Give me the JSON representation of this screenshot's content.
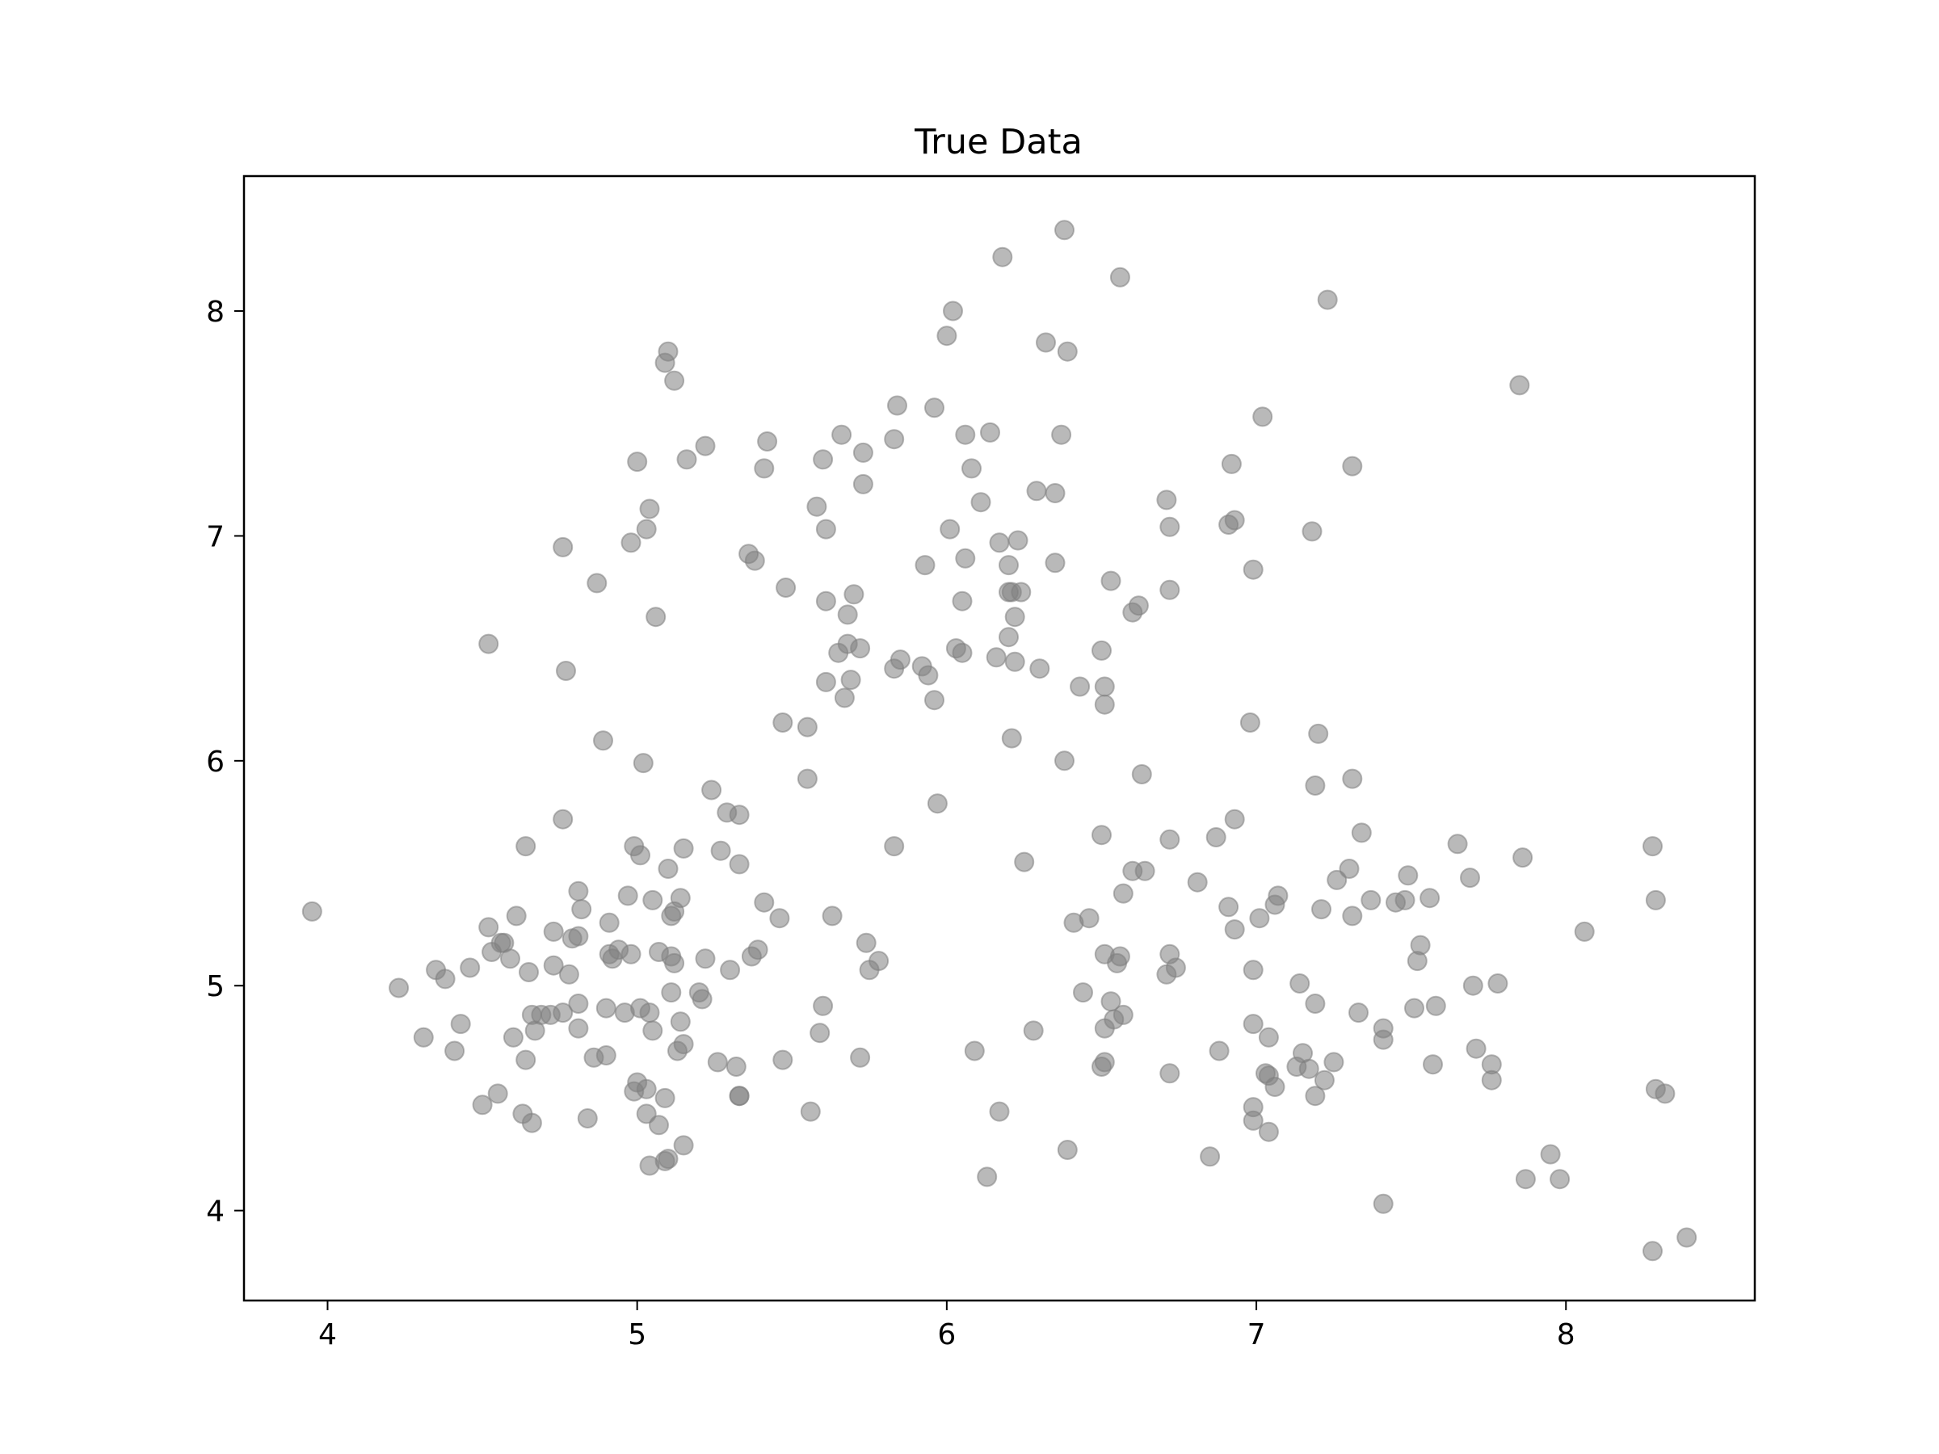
{
  "chart_data": {
    "type": "scatter",
    "title": "True Data",
    "xlabel": "",
    "ylabel": "",
    "xlim": [
      3.73,
      8.61
    ],
    "ylim": [
      3.6,
      8.6
    ],
    "xticks": [
      4,
      5,
      6,
      7,
      8
    ],
    "yticks": [
      4,
      5,
      6,
      7,
      8
    ],
    "grid": false,
    "legend": "none",
    "marker_color": "#808080",
    "marker_opacity": 0.55,
    "points": [
      [
        3.95,
        5.33
      ],
      [
        4.23,
        4.99
      ],
      [
        4.31,
        4.77
      ],
      [
        4.35,
        5.07
      ],
      [
        4.38,
        5.03
      ],
      [
        4.41,
        4.71
      ],
      [
        4.43,
        4.83
      ],
      [
        4.46,
        5.08
      ],
      [
        4.5,
        4.47
      ],
      [
        4.52,
        5.26
      ],
      [
        4.53,
        5.15
      ],
      [
        4.55,
        4.52
      ],
      [
        4.56,
        5.19
      ],
      [
        4.57,
        5.19
      ],
      [
        4.59,
        5.12
      ],
      [
        4.6,
        4.77
      ],
      [
        4.61,
        5.31
      ],
      [
        4.63,
        4.43
      ],
      [
        4.64,
        4.67
      ],
      [
        4.65,
        5.06
      ],
      [
        4.66,
        4.39
      ],
      [
        4.66,
        4.87
      ],
      [
        4.67,
        4.8
      ],
      [
        4.69,
        4.87
      ],
      [
        4.72,
        4.87
      ],
      [
        4.73,
        5.24
      ],
      [
        4.73,
        5.09
      ],
      [
        4.76,
        4.88
      ],
      [
        4.78,
        5.05
      ],
      [
        4.79,
        5.21
      ],
      [
        4.81,
        5.22
      ],
      [
        4.81,
        4.92
      ],
      [
        4.81,
        4.81
      ],
      [
        4.82,
        5.34
      ],
      [
        4.81,
        5.42
      ],
      [
        4.84,
        4.41
      ],
      [
        4.86,
        4.68
      ],
      [
        4.9,
        4.69
      ],
      [
        4.9,
        4.9
      ],
      [
        4.91,
        5.28
      ],
      [
        4.91,
        5.14
      ],
      [
        4.92,
        5.12
      ],
      [
        4.94,
        5.16
      ],
      [
        4.96,
        4.88
      ],
      [
        4.97,
        5.4
      ],
      [
        4.98,
        5.14
      ],
      [
        4.99,
        4.53
      ],
      [
        4.99,
        5.62
      ],
      [
        5.0,
        4.57
      ],
      [
        5.01,
        4.9
      ],
      [
        5.01,
        5.58
      ],
      [
        5.03,
        4.54
      ],
      [
        5.03,
        4.43
      ],
      [
        5.04,
        4.2
      ],
      [
        5.04,
        4.88
      ],
      [
        5.05,
        4.8
      ],
      [
        5.05,
        5.38
      ],
      [
        5.07,
        4.38
      ],
      [
        5.07,
        5.15
      ],
      [
        5.09,
        4.22
      ],
      [
        5.09,
        4.5
      ],
      [
        5.1,
        4.23
      ],
      [
        5.1,
        5.52
      ],
      [
        5.11,
        5.13
      ],
      [
        5.11,
        4.97
      ],
      [
        5.11,
        5.31
      ],
      [
        5.12,
        5.33
      ],
      [
        5.12,
        5.1
      ],
      [
        5.13,
        4.71
      ],
      [
        5.14,
        4.84
      ],
      [
        5.14,
        5.39
      ],
      [
        5.15,
        4.29
      ],
      [
        5.15,
        4.74
      ],
      [
        5.15,
        5.61
      ],
      [
        5.2,
        4.97
      ],
      [
        5.21,
        4.94
      ],
      [
        5.22,
        5.12
      ],
      [
        5.24,
        5.87
      ],
      [
        5.26,
        4.66
      ],
      [
        5.27,
        5.6
      ],
      [
        5.29,
        5.77
      ],
      [
        5.3,
        5.07
      ],
      [
        5.32,
        4.64
      ],
      [
        5.33,
        4.51
      ],
      [
        5.33,
        4.51
      ],
      [
        5.33,
        5.54
      ],
      [
        5.33,
        5.76
      ],
      [
        5.37,
        5.13
      ],
      [
        5.39,
        5.16
      ],
      [
        5.41,
        5.37
      ],
      [
        5.46,
        5.3
      ],
      [
        5.47,
        4.67
      ],
      [
        4.76,
        5.74
      ],
      [
        4.64,
        5.62
      ],
      [
        4.89,
        6.09
      ],
      [
        5.02,
        5.99
      ],
      [
        4.52,
        6.52
      ],
      [
        4.77,
        6.4
      ],
      [
        4.87,
        6.79
      ],
      [
        4.76,
        6.95
      ],
      [
        4.98,
        6.97
      ],
      [
        5.03,
        7.03
      ],
      [
        5.04,
        7.12
      ],
      [
        5.06,
        6.64
      ],
      [
        5.0,
        7.33
      ],
      [
        5.16,
        7.34
      ],
      [
        5.22,
        7.4
      ],
      [
        5.09,
        7.77
      ],
      [
        5.1,
        7.82
      ],
      [
        5.12,
        7.69
      ],
      [
        5.36,
        6.92
      ],
      [
        5.38,
        6.89
      ],
      [
        5.41,
        7.3
      ],
      [
        5.42,
        7.42
      ],
      [
        5.48,
        6.77
      ],
      [
        5.47,
        6.17
      ],
      [
        5.55,
        6.15
      ],
      [
        5.55,
        5.92
      ],
      [
        5.58,
        7.13
      ],
      [
        5.6,
        7.34
      ],
      [
        5.61,
        7.03
      ],
      [
        5.61,
        6.71
      ],
      [
        5.61,
        6.35
      ],
      [
        5.65,
        6.48
      ],
      [
        5.66,
        7.45
      ],
      [
        5.67,
        6.28
      ],
      [
        5.68,
        6.52
      ],
      [
        5.68,
        6.65
      ],
      [
        5.69,
        6.36
      ],
      [
        5.7,
        6.74
      ],
      [
        5.72,
        6.5
      ],
      [
        5.73,
        7.23
      ],
      [
        5.73,
        7.37
      ],
      [
        5.83,
        7.43
      ],
      [
        5.83,
        6.41
      ],
      [
        5.84,
        7.58
      ],
      [
        5.85,
        6.45
      ],
      [
        5.92,
        6.42
      ],
      [
        5.94,
        6.38
      ],
      [
        5.93,
        6.87
      ],
      [
        5.96,
        6.27
      ],
      [
        5.96,
        7.57
      ],
      [
        6.0,
        7.89
      ],
      [
        6.01,
        7.03
      ],
      [
        6.02,
        8.0
      ],
      [
        6.03,
        6.5
      ],
      [
        6.05,
        6.71
      ],
      [
        6.05,
        6.48
      ],
      [
        6.06,
        6.9
      ],
      [
        6.06,
        7.45
      ],
      [
        6.08,
        7.3
      ],
      [
        6.11,
        7.15
      ],
      [
        6.14,
        7.46
      ],
      [
        6.16,
        6.46
      ],
      [
        6.17,
        6.97
      ],
      [
        6.18,
        8.24
      ],
      [
        6.2,
        6.87
      ],
      [
        6.2,
        6.75
      ],
      [
        6.2,
        6.55
      ],
      [
        6.21,
        6.75
      ],
      [
        6.21,
        6.1
      ],
      [
        6.22,
        6.64
      ],
      [
        6.22,
        6.44
      ],
      [
        6.23,
        6.98
      ],
      [
        6.24,
        6.75
      ],
      [
        6.25,
        5.55
      ],
      [
        6.29,
        7.2
      ],
      [
        6.3,
        6.41
      ],
      [
        6.32,
        7.86
      ],
      [
        6.35,
        7.19
      ],
      [
        6.35,
        6.88
      ],
      [
        6.37,
        7.45
      ],
      [
        6.38,
        6.0
      ],
      [
        6.38,
        8.36
      ],
      [
        6.39,
        7.82
      ],
      [
        6.43,
        6.33
      ],
      [
        6.5,
        6.49
      ],
      [
        6.51,
        6.33
      ],
      [
        6.51,
        6.25
      ],
      [
        6.53,
        6.8
      ],
      [
        6.56,
        8.15
      ],
      [
        6.6,
        6.66
      ],
      [
        6.62,
        6.69
      ],
      [
        6.63,
        5.94
      ],
      [
        6.71,
        7.16
      ],
      [
        6.72,
        7.04
      ],
      [
        6.72,
        6.76
      ],
      [
        6.91,
        7.05
      ],
      [
        6.92,
        7.32
      ],
      [
        6.93,
        7.07
      ],
      [
        6.99,
        6.85
      ],
      [
        6.98,
        6.17
      ],
      [
        7.02,
        7.53
      ],
      [
        7.18,
        7.02
      ],
      [
        7.23,
        8.05
      ],
      [
        7.31,
        7.31
      ],
      [
        7.85,
        7.67
      ],
      [
        7.2,
        6.12
      ],
      [
        7.19,
        5.89
      ],
      [
        7.31,
        5.92
      ],
      [
        5.6,
        4.91
      ],
      [
        5.59,
        4.79
      ],
      [
        5.56,
        4.44
      ],
      [
        5.63,
        5.31
      ],
      [
        5.72,
        4.68
      ],
      [
        5.74,
        5.19
      ],
      [
        5.75,
        5.07
      ],
      [
        5.78,
        5.11
      ],
      [
        5.83,
        5.62
      ],
      [
        5.97,
        5.81
      ],
      [
        6.09,
        4.71
      ],
      [
        6.13,
        4.15
      ],
      [
        6.17,
        4.44
      ],
      [
        6.28,
        4.8
      ],
      [
        6.39,
        4.27
      ],
      [
        6.41,
        5.28
      ],
      [
        6.44,
        4.97
      ],
      [
        6.46,
        5.3
      ],
      [
        6.5,
        5.67
      ],
      [
        6.5,
        4.64
      ],
      [
        6.51,
        4.66
      ],
      [
        6.51,
        4.81
      ],
      [
        6.51,
        5.14
      ],
      [
        6.53,
        4.93
      ],
      [
        6.54,
        4.85
      ],
      [
        6.55,
        5.1
      ],
      [
        6.56,
        5.13
      ],
      [
        6.57,
        4.87
      ],
      [
        6.57,
        5.41
      ],
      [
        6.6,
        5.51
      ],
      [
        6.64,
        5.51
      ],
      [
        6.71,
        5.05
      ],
      [
        6.72,
        5.14
      ],
      [
        6.72,
        4.61
      ],
      [
        6.72,
        5.65
      ],
      [
        6.74,
        5.08
      ],
      [
        6.81,
        5.46
      ],
      [
        6.85,
        4.24
      ],
      [
        6.87,
        5.66
      ],
      [
        6.88,
        4.71
      ],
      [
        6.91,
        5.35
      ],
      [
        6.93,
        5.74
      ],
      [
        6.93,
        5.25
      ],
      [
        6.99,
        5.07
      ],
      [
        6.99,
        4.83
      ],
      [
        6.99,
        4.46
      ],
      [
        6.99,
        4.4
      ],
      [
        7.01,
        5.3
      ],
      [
        7.03,
        4.61
      ],
      [
        7.04,
        4.6
      ],
      [
        7.04,
        4.35
      ],
      [
        7.04,
        4.77
      ],
      [
        7.06,
        4.55
      ],
      [
        7.06,
        5.36
      ],
      [
        7.07,
        5.4
      ],
      [
        7.13,
        4.64
      ],
      [
        7.14,
        5.01
      ],
      [
        7.15,
        4.7
      ],
      [
        7.17,
        4.63
      ],
      [
        7.19,
        4.51
      ],
      [
        7.19,
        4.92
      ],
      [
        7.21,
        5.34
      ],
      [
        7.22,
        4.58
      ],
      [
        7.25,
        4.66
      ],
      [
        7.26,
        5.47
      ],
      [
        7.3,
        5.52
      ],
      [
        7.31,
        5.31
      ],
      [
        7.33,
        4.88
      ],
      [
        7.34,
        5.68
      ],
      [
        7.37,
        5.38
      ],
      [
        7.41,
        4.81
      ],
      [
        7.41,
        4.76
      ],
      [
        7.41,
        4.03
      ],
      [
        7.45,
        5.37
      ],
      [
        7.48,
        5.38
      ],
      [
        7.49,
        5.49
      ],
      [
        7.51,
        4.9
      ],
      [
        7.52,
        5.11
      ],
      [
        7.53,
        5.18
      ],
      [
        7.56,
        5.39
      ],
      [
        7.57,
        4.65
      ],
      [
        7.58,
        4.91
      ],
      [
        7.65,
        5.63
      ],
      [
        7.69,
        5.48
      ],
      [
        7.7,
        5.0
      ],
      [
        7.71,
        4.72
      ],
      [
        7.76,
        4.58
      ],
      [
        7.76,
        4.65
      ],
      [
        7.78,
        5.01
      ],
      [
        7.86,
        5.57
      ],
      [
        7.87,
        4.14
      ],
      [
        7.95,
        4.25
      ],
      [
        7.98,
        4.14
      ],
      [
        8.06,
        5.24
      ],
      [
        8.28,
        5.62
      ],
      [
        8.28,
        3.82
      ],
      [
        8.29,
        5.38
      ],
      [
        8.29,
        4.54
      ],
      [
        8.32,
        4.52
      ],
      [
        8.39,
        3.88
      ]
    ]
  }
}
